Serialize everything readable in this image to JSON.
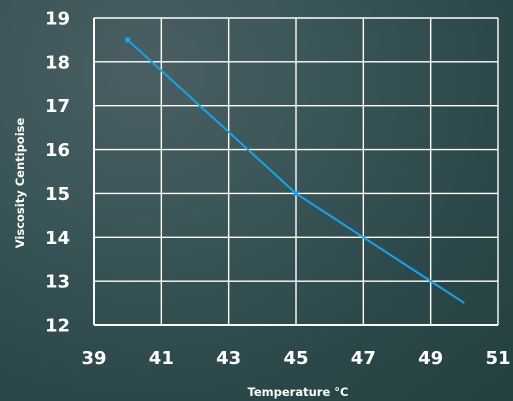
{
  "chart_data": {
    "type": "line",
    "title": "",
    "xlabel": "Temperature °C",
    "ylabel": "Viscosity Centipoise",
    "xlim": [
      39,
      51
    ],
    "ylim": [
      12,
      19
    ],
    "xticks": [
      39,
      41,
      43,
      45,
      47,
      49,
      51
    ],
    "yticks": [
      12,
      13,
      14,
      15,
      16,
      17,
      18,
      19
    ],
    "grid": true,
    "legend": "none",
    "series": [
      {
        "color": "#1aa3e8",
        "x": [
          40,
          45,
          47,
          49,
          50
        ],
        "y": [
          18.5,
          15,
          14,
          13,
          12.5
        ],
        "markers_at": [
          0,
          1
        ]
      }
    ]
  }
}
